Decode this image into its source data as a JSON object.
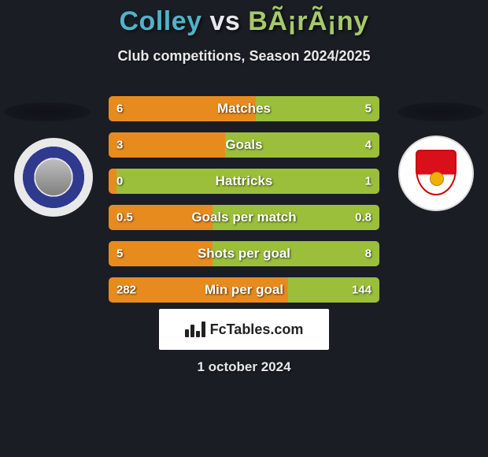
{
  "title": {
    "player1": "Colley",
    "vs": "vs",
    "player2": "BÃ¡rÃ¡ny",
    "player1_color": "#4fb3c9",
    "vs_color": "#e8e8ea",
    "player2_color": "#a6c96a"
  },
  "subtitle": "Club competitions, Season 2024/2025",
  "colors": {
    "left": "#e78b1f",
    "right": "#9bbf3a",
    "background": "#1a1d24"
  },
  "bars": [
    {
      "label": "Matches",
      "left_val": "6",
      "right_val": "5",
      "left_pct": 54.5,
      "right_pct": 45.5
    },
    {
      "label": "Goals",
      "left_val": "3",
      "right_val": "4",
      "left_pct": 42.9,
      "right_pct": 57.1
    },
    {
      "label": "Hattricks",
      "left_val": "0",
      "right_val": "1",
      "left_pct": 3.0,
      "right_pct": 97.0
    },
    {
      "label": "Goals per match",
      "left_val": "0.5",
      "right_val": "0.8",
      "left_pct": 38.5,
      "right_pct": 61.5
    },
    {
      "label": "Shots per goal",
      "left_val": "5",
      "right_val": "8",
      "left_pct": 38.5,
      "right_pct": 61.5
    },
    {
      "label": "Min per goal",
      "left_val": "282",
      "right_val": "144",
      "left_pct": 66.2,
      "right_pct": 33.8
    }
  ],
  "fctables_label": "FcTables.com",
  "date": "1 october 2024",
  "crest_left_name": "Puskás Ferenc",
  "crest_right_name": "DVSC"
}
